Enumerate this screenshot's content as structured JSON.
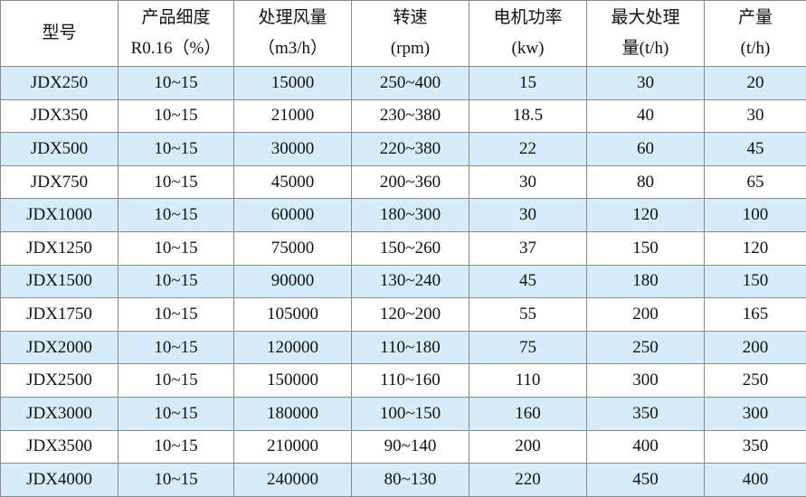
{
  "table": {
    "header": [
      [
        "型号"
      ],
      [
        "产品细度",
        "R0.16（%）"
      ],
      [
        "处理风量",
        "（m3/h）"
      ],
      [
        "转速",
        "(rpm)"
      ],
      [
        "电机功率",
        "(kw)"
      ],
      [
        "最大处理",
        "量(t/h)"
      ],
      [
        "产量",
        "(t/h)"
      ]
    ],
    "rows": [
      [
        "JDX250",
        "10~15",
        "15000",
        "250~400",
        "15",
        "30",
        "20"
      ],
      [
        "JDX350",
        "10~15",
        "21000",
        "230~380",
        "18.5",
        "40",
        "30"
      ],
      [
        "JDX500",
        "10~15",
        "30000",
        "220~380",
        "22",
        "60",
        "45"
      ],
      [
        "JDX750",
        "10~15",
        "45000",
        "200~360",
        "30",
        "80",
        "65"
      ],
      [
        "JDX1000",
        "10~15",
        "60000",
        "180~300",
        "30",
        "120",
        "100"
      ],
      [
        "JDX1250",
        "10~15",
        "75000",
        "150~260",
        "37",
        "150",
        "120"
      ],
      [
        "JDX1500",
        "10~15",
        "90000",
        "130~240",
        "45",
        "180",
        "150"
      ],
      [
        "JDX1750",
        "10~15",
        "105000",
        "120~200",
        "55",
        "200",
        "165"
      ],
      [
        "JDX2000",
        "10~15",
        "120000",
        "110~180",
        "75",
        "250",
        "200"
      ],
      [
        "JDX2500",
        "10~15",
        "150000",
        "110~160",
        "110",
        "300",
        "250"
      ],
      [
        "JDX3000",
        "10~15",
        "180000",
        "100~150",
        "160",
        "350",
        "300"
      ],
      [
        "JDX3500",
        "10~15",
        "210000",
        "90~140",
        "200",
        "400",
        "350"
      ],
      [
        "JDX4000",
        "10~15",
        "240000",
        "80~130",
        "220",
        "450",
        "400"
      ]
    ]
  }
}
